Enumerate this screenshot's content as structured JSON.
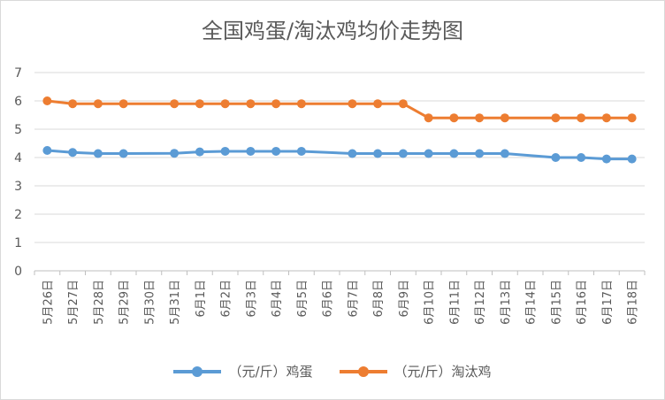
{
  "chart_data": {
    "type": "line",
    "title": "全国鸡蛋/淘汰鸡均价走势图",
    "xlabel": "",
    "ylabel": "",
    "ylim": [
      0,
      7
    ],
    "yticks": [
      "0",
      "1",
      "2",
      "3",
      "4",
      "5",
      "6",
      "7"
    ],
    "grid": true,
    "legend_position": "bottom",
    "categories": [
      "5月26日",
      "5月27日",
      "5月28日",
      "5月29日",
      "5月30日",
      "5月31日",
      "6月1日",
      "6月2日",
      "6月3日",
      "6月4日",
      "6月5日",
      "6月6日",
      "6月7日",
      "6月8日",
      "6月9日",
      "6月10日",
      "6月11日",
      "6月12日",
      "6月13日",
      "6月14日",
      "6月15日",
      "6月16日",
      "6月17日",
      "6月18日"
    ],
    "series": [
      {
        "name": "（元/斤）鸡蛋",
        "color": "#5b9bd5",
        "values": [
          4.25,
          4.18,
          4.14,
          4.14,
          null,
          4.15,
          4.2,
          4.22,
          4.22,
          4.22,
          4.22,
          null,
          4.14,
          4.14,
          4.14,
          4.14,
          4.14,
          4.14,
          4.14,
          null,
          4.0,
          4.0,
          3.95,
          3.95
        ]
      },
      {
        "name": "（元/斤）淘汰鸡",
        "color": "#ed7d31",
        "values": [
          6.0,
          5.9,
          5.9,
          5.9,
          null,
          5.9,
          5.9,
          5.9,
          5.9,
          5.9,
          5.9,
          null,
          5.9,
          5.9,
          5.9,
          5.4,
          5.4,
          5.4,
          5.4,
          null,
          5.4,
          5.4,
          5.4,
          5.4
        ]
      }
    ]
  }
}
